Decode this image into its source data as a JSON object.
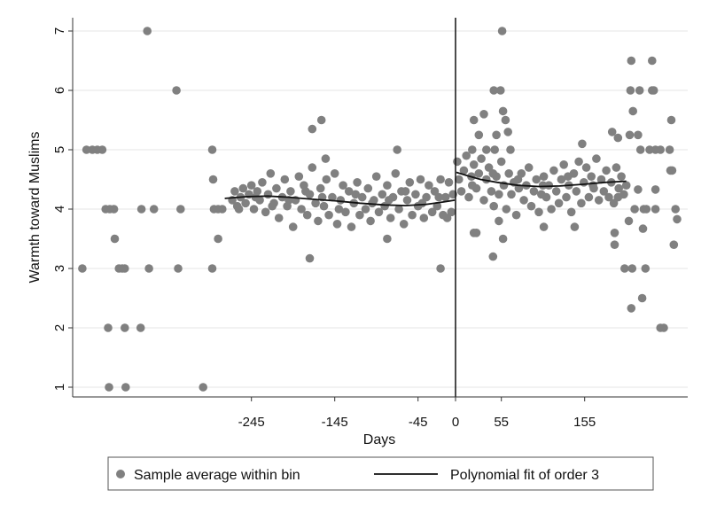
{
  "chart_data": {
    "type": "scatter",
    "title": "",
    "xlabel": "Days",
    "ylabel": "Warmth toward Muslims",
    "xlim": [
      -460,
      278
    ],
    "ylim": [
      0.84,
      7.2
    ],
    "xticks": [
      -245,
      -145,
      -45,
      0,
      55,
      155
    ],
    "yticks": [
      1,
      2,
      3,
      4,
      5,
      6,
      7
    ],
    "grid": true,
    "cutoff": 0,
    "legend": {
      "placement": "bottom",
      "entries": [
        "Sample average within bin",
        "Polynomial fit of order 3"
      ]
    },
    "colors": {
      "points": "#808080",
      "fit": "#111111",
      "grid": "#e4e4e4"
    },
    "series": [
      {
        "name": "Sample average within bin",
        "kind": "scatter",
        "points": [
          [
            -448,
            3
          ],
          [
            -443,
            5
          ],
          [
            -436,
            5
          ],
          [
            -430,
            5
          ],
          [
            -424,
            5
          ],
          [
            -420,
            4
          ],
          [
            -415,
            4
          ],
          [
            -410,
            4
          ],
          [
            -417,
            2
          ],
          [
            -416,
            1
          ],
          [
            -409,
            3.5
          ],
          [
            -404,
            3
          ],
          [
            -400,
            3
          ],
          [
            -397,
            3
          ],
          [
            -397,
            2
          ],
          [
            -396,
            1
          ],
          [
            -378,
            2
          ],
          [
            -377,
            4
          ],
          [
            -370,
            7
          ],
          [
            -368,
            3
          ],
          [
            -362,
            4
          ],
          [
            -335,
            6
          ],
          [
            -333,
            3
          ],
          [
            -330,
            4
          ],
          [
            -303,
            1
          ],
          [
            -292,
            5
          ],
          [
            -292,
            3
          ],
          [
            -291,
            4.5
          ],
          [
            -290,
            4
          ],
          [
            -285,
            4
          ],
          [
            -280,
            4
          ],
          [
            -285,
            3.5
          ],
          [
            -161,
            5.5
          ],
          [
            -172,
            5.35
          ],
          [
            -156,
            4.85
          ],
          [
            -175,
            3.17
          ],
          [
            -70,
            5.0
          ],
          [
            -18,
            3.0
          ],
          [
            -82,
            3.5
          ],
          [
            -268,
            4.15
          ],
          [
            -265,
            4.3
          ],
          [
            -262,
            4.05
          ],
          [
            -258,
            4.2
          ],
          [
            -255,
            4.35
          ],
          [
            -252,
            4.1
          ],
          [
            -248,
            4.25
          ],
          [
            -245,
            4.4
          ],
          [
            -242,
            4.0
          ],
          [
            -238,
            4.3
          ],
          [
            -235,
            4.15
          ],
          [
            -232,
            4.45
          ],
          [
            -228,
            3.95
          ],
          [
            -225,
            4.25
          ],
          [
            -222,
            4.6
          ],
          [
            -218,
            4.1
          ],
          [
            -215,
            4.35
          ],
          [
            -212,
            3.85
          ],
          [
            -208,
            4.2
          ],
          [
            -205,
            4.5
          ],
          [
            -202,
            4.05
          ],
          [
            -198,
            4.3
          ],
          [
            -195,
            3.7
          ],
          [
            -192,
            4.15
          ],
          [
            -188,
            4.55
          ],
          [
            -185,
            4.0
          ],
          [
            -182,
            4.4
          ],
          [
            -178,
            3.9
          ],
          [
            -175,
            4.25
          ],
          [
            -172,
            4.7
          ],
          [
            -168,
            4.1
          ],
          [
            -165,
            3.8
          ],
          [
            -162,
            4.35
          ],
          [
            -158,
            4.05
          ],
          [
            -155,
            4.5
          ],
          [
            -152,
            3.9
          ],
          [
            -148,
            4.2
          ],
          [
            -145,
            4.6
          ],
          [
            -142,
            3.75
          ],
          [
            -138,
            4.15
          ],
          [
            -135,
            4.4
          ],
          [
            -132,
            3.95
          ],
          [
            -128,
            4.3
          ],
          [
            -125,
            3.7
          ],
          [
            -122,
            4.1
          ],
          [
            -118,
            4.45
          ],
          [
            -115,
            3.9
          ],
          [
            -112,
            4.2
          ],
          [
            -108,
            4.0
          ],
          [
            -105,
            4.35
          ],
          [
            -102,
            3.8
          ],
          [
            -98,
            4.15
          ],
          [
            -95,
            4.55
          ],
          [
            -92,
            3.95
          ],
          [
            -88,
            4.25
          ],
          [
            -85,
            4.05
          ],
          [
            -82,
            4.4
          ],
          [
            -78,
            3.85
          ],
          [
            -75,
            4.2
          ],
          [
            -72,
            4.6
          ],
          [
            -68,
            4.0
          ],
          [
            -65,
            4.3
          ],
          [
            -62,
            3.75
          ],
          [
            -58,
            4.15
          ],
          [
            -55,
            4.45
          ],
          [
            -52,
            3.9
          ],
          [
            -48,
            4.25
          ],
          [
            -45,
            4.05
          ],
          [
            -42,
            4.5
          ],
          [
            -38,
            3.85
          ],
          [
            -35,
            4.2
          ],
          [
            -32,
            4.4
          ],
          [
            -28,
            3.95
          ],
          [
            -25,
            4.3
          ],
          [
            -22,
            4.05
          ],
          [
            -18,
            4.5
          ],
          [
            -15,
            3.9
          ],
          [
            -12,
            4.2
          ],
          [
            -8,
            4.45
          ],
          [
            -5,
            3.95
          ],
          [
            -3,
            4.25
          ],
          [
            -260,
            4.0
          ],
          [
            -240,
            4.2
          ],
          [
            -220,
            4.05
          ],
          [
            -200,
            4.15
          ],
          [
            -180,
            4.3
          ],
          [
            -160,
            4.2
          ],
          [
            -140,
            4.0
          ],
          [
            -120,
            4.25
          ],
          [
            -100,
            4.1
          ],
          [
            -80,
            4.15
          ],
          [
            -60,
            4.3
          ],
          [
            -40,
            4.1
          ],
          [
            -20,
            4.2
          ],
          [
            -10,
            3.85
          ],
          [
            56,
            7
          ],
          [
            46,
            6
          ],
          [
            54,
            6
          ],
          [
            57,
            5.65
          ],
          [
            60,
            5.5
          ],
          [
            63,
            5.3
          ],
          [
            34,
            5.6
          ],
          [
            22,
            5.5
          ],
          [
            28,
            5.25
          ],
          [
            49,
            5.25
          ],
          [
            37,
            5
          ],
          [
            47,
            5
          ],
          [
            66,
            5
          ],
          [
            20,
            5
          ],
          [
            22,
            3.6
          ],
          [
            25,
            3.6
          ],
          [
            45,
            3.2
          ],
          [
            57,
            3.5
          ],
          [
            52,
            3.8
          ],
          [
            106,
            3.7
          ],
          [
            143,
            3.7
          ],
          [
            152,
            5.1
          ],
          [
            188,
            5.3
          ],
          [
            195,
            5.2
          ],
          [
            209,
            5.25
          ],
          [
            219,
            5.25
          ],
          [
            211,
            6.5
          ],
          [
            236,
            6.5
          ],
          [
            210,
            6
          ],
          [
            221,
            6
          ],
          [
            236,
            6
          ],
          [
            238,
            6
          ],
          [
            213,
            5.65
          ],
          [
            222,
            5
          ],
          [
            233,
            5
          ],
          [
            240,
            5
          ],
          [
            246,
            5
          ],
          [
            257,
            5
          ],
          [
            258,
            4.65
          ],
          [
            260,
            4.65
          ],
          [
            259,
            5.5
          ],
          [
            219,
            4.33
          ],
          [
            240,
            4.33
          ],
          [
            215,
            4
          ],
          [
            226,
            4
          ],
          [
            229,
            4
          ],
          [
            240,
            4
          ],
          [
            264,
            4
          ],
          [
            266,
            3.83
          ],
          [
            208,
            3.8
          ],
          [
            225,
            3.67
          ],
          [
            191,
            3.6
          ],
          [
            212,
            3
          ],
          [
            191,
            3.4
          ],
          [
            203,
            3
          ],
          [
            228,
            3
          ],
          [
            224,
            2.5
          ],
          [
            211,
            2.33
          ],
          [
            246,
            2
          ],
          [
            250,
            2
          ],
          [
            262,
            3.4
          ],
          [
            2,
            4.8
          ],
          [
            4,
            4.5
          ],
          [
            7,
            4.3
          ],
          [
            10,
            4.65
          ],
          [
            13,
            4.9
          ],
          [
            16,
            4.2
          ],
          [
            19,
            4.55
          ],
          [
            22,
            4.75
          ],
          [
            25,
            4.35
          ],
          [
            28,
            4.6
          ],
          [
            31,
            4.85
          ],
          [
            34,
            4.15
          ],
          [
            37,
            4.5
          ],
          [
            40,
            4.7
          ],
          [
            43,
            4.3
          ],
          [
            46,
            4.05
          ],
          [
            49,
            4.55
          ],
          [
            52,
            4.25
          ],
          [
            55,
            4.8
          ],
          [
            58,
            4.4
          ],
          [
            61,
            4.0
          ],
          [
            64,
            4.6
          ],
          [
            67,
            4.25
          ],
          [
            70,
            4.45
          ],
          [
            73,
            3.9
          ],
          [
            76,
            4.35
          ],
          [
            79,
            4.6
          ],
          [
            82,
            4.15
          ],
          [
            85,
            4.4
          ],
          [
            88,
            4.7
          ],
          [
            91,
            4.05
          ],
          [
            94,
            4.3
          ],
          [
            97,
            4.5
          ],
          [
            100,
            3.95
          ],
          [
            103,
            4.25
          ],
          [
            106,
            4.55
          ],
          [
            109,
            4.2
          ],
          [
            112,
            4.4
          ],
          [
            115,
            4.0
          ],
          [
            118,
            4.65
          ],
          [
            121,
            4.3
          ],
          [
            124,
            4.1
          ],
          [
            127,
            4.5
          ],
          [
            130,
            4.75
          ],
          [
            133,
            4.2
          ],
          [
            136,
            4.4
          ],
          [
            139,
            3.95
          ],
          [
            142,
            4.6
          ],
          [
            145,
            4.3
          ],
          [
            148,
            4.8
          ],
          [
            151,
            4.1
          ],
          [
            154,
            4.45
          ],
          [
            157,
            4.7
          ],
          [
            160,
            4.2
          ],
          [
            163,
            4.55
          ],
          [
            166,
            4.35
          ],
          [
            169,
            4.85
          ],
          [
            172,
            4.15
          ],
          [
            175,
            4.5
          ],
          [
            178,
            4.3
          ],
          [
            181,
            4.65
          ],
          [
            184,
            4.2
          ],
          [
            187,
            4.45
          ],
          [
            190,
            4.1
          ],
          [
            193,
            4.7
          ],
          [
            196,
            4.35
          ],
          [
            199,
            4.55
          ],
          [
            202,
            4.25
          ],
          [
            205,
            4.4
          ],
          [
            20,
            4.4
          ],
          [
            45,
            4.6
          ],
          [
            75,
            4.5
          ],
          [
            105,
            4.4
          ],
          [
            135,
            4.55
          ],
          [
            165,
            4.4
          ],
          [
            195,
            4.2
          ]
        ]
      },
      {
        "name": "Polynomial fit of order 3",
        "kind": "line",
        "segments": [
          [
            [
              -277,
              4.18
            ],
            [
              -250,
              4.21
            ],
            [
              -225,
              4.22
            ],
            [
              -200,
              4.2
            ],
            [
              -175,
              4.17
            ],
            [
              -145,
              4.14
            ],
            [
              -115,
              4.1
            ],
            [
              -85,
              4.07
            ],
            [
              -60,
              4.06
            ],
            [
              -35,
              4.08
            ],
            [
              -15,
              4.12
            ],
            [
              -1,
              4.15
            ]
          ],
          [
            [
              1,
              4.62
            ],
            [
              15,
              4.56
            ],
            [
              30,
              4.5
            ],
            [
              50,
              4.45
            ],
            [
              75,
              4.4
            ],
            [
              100,
              4.38
            ],
            [
              125,
              4.39
            ],
            [
              155,
              4.42
            ],
            [
              180,
              4.45
            ],
            [
              205,
              4.47
            ]
          ]
        ]
      }
    ]
  }
}
